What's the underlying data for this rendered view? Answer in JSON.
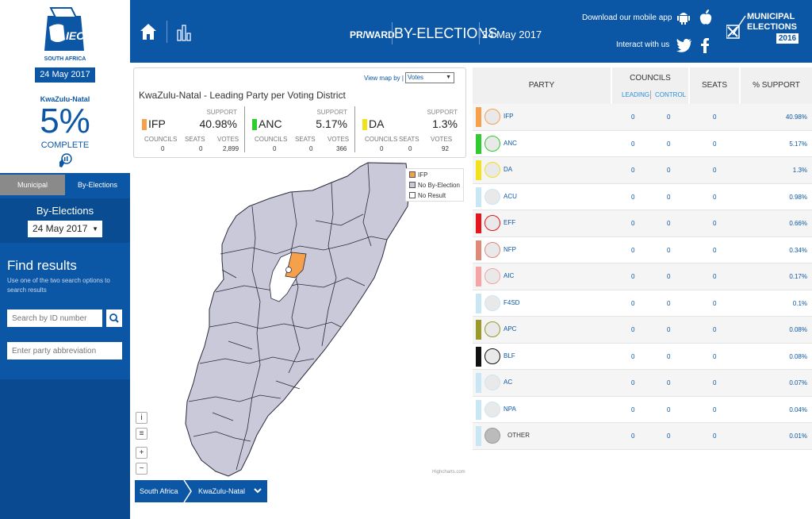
{
  "sidebar": {
    "logo_text": "IEC",
    "country": "SOUTH AFRICA",
    "date": "24 May 2017",
    "province": "KwaZulu-Natal",
    "progress_pct": "5%",
    "progress_fraction": 0.05,
    "progress_label": "COMPLETE",
    "tabs": [
      {
        "label": "Municipal",
        "active": true
      },
      {
        "label": "By-Elections",
        "active": false
      }
    ],
    "byelections_title": "By-Elections",
    "byelections_date": "24 May 2017",
    "find_title": "Find results",
    "find_desc": "Use one of the two search options to search results",
    "search_id_placeholder": "Search by ID number",
    "party_placeholder": "Enter party abbreviation"
  },
  "header": {
    "mode": "PR/WARD",
    "title": "BY-ELECTIONS",
    "date": "24 May 2017",
    "app_text": "Download our mobile app",
    "interact_text": "Interact with us",
    "brand_line1": "MUNICIPAL",
    "brand_line2": "ELECTIONS",
    "brand_year": "2016",
    "icons": [
      "home-icon",
      "chart-icon",
      "android-icon",
      "apple-icon",
      "twitter-icon",
      "facebook-icon"
    ]
  },
  "panel": {
    "view_label": "View map by |",
    "view_value": "Votes",
    "title": "KwaZulu-Natal - Leading Party per Voting District",
    "support_label": "SUPPORT",
    "councils_label": "COUNCILS",
    "seats_label": "SEATS",
    "votes_label": "VOTES",
    "parties": [
      {
        "name": "IFP",
        "support": "40.98%",
        "councils": "0",
        "seats": "0",
        "votes": "2,899",
        "color": "#f5a04b"
      },
      {
        "name": "ANC",
        "support": "5.17%",
        "councils": "0",
        "seats": "0",
        "votes": "366",
        "color": "#2ecc2e"
      },
      {
        "name": "DA",
        "support": "1.3%",
        "councils": "0",
        "seats": "0",
        "votes": "92",
        "color": "#f2e21a"
      }
    ]
  },
  "map": {
    "legend": [
      {
        "label": "IFP",
        "color": "#f5a04b"
      },
      {
        "label": "No By-Election",
        "color": "#c8c8d8"
      },
      {
        "label": "No Result",
        "color": "#ffffff"
      }
    ],
    "controls": [
      "i",
      "≡",
      "+",
      "−"
    ],
    "credit": "Highcharts.com",
    "breadcrumb": [
      "South Africa",
      "KwaZulu-Natal"
    ]
  },
  "table": {
    "headers": {
      "party": "PARTY",
      "councils": "COUNCILS",
      "leading": "LEADING",
      "control": "CONTROL",
      "seats": "SEATS",
      "support": "% SUPPORT"
    },
    "rows": [
      {
        "party": "IFP",
        "leading": "0",
        "control": "0",
        "seats": "0",
        "support": "40.98%",
        "color": "#f5a04b"
      },
      {
        "party": "ANC",
        "leading": "0",
        "control": "0",
        "seats": "0",
        "support": "5.17%",
        "color": "#2ecc2e"
      },
      {
        "party": "DA",
        "leading": "0",
        "control": "0",
        "seats": "0",
        "support": "1.3%",
        "color": "#f2e21a"
      },
      {
        "party": "ACU",
        "leading": "0",
        "control": "0",
        "seats": "0",
        "support": "0.98%",
        "color": "#c9e6f5"
      },
      {
        "party": "EFF",
        "leading": "0",
        "control": "0",
        "seats": "0",
        "support": "0.66%",
        "color": "#e8141b"
      },
      {
        "party": "NFP",
        "leading": "0",
        "control": "0",
        "seats": "0",
        "support": "0.34%",
        "color": "#e08878"
      },
      {
        "party": "AIC",
        "leading": "0",
        "control": "0",
        "seats": "0",
        "support": "0.17%",
        "color": "#f5a3a3"
      },
      {
        "party": "F4SD",
        "leading": "0",
        "control": "0",
        "seats": "0",
        "support": "0.1%",
        "color": "#c9e6f5"
      },
      {
        "party": "APC",
        "leading": "0",
        "control": "0",
        "seats": "0",
        "support": "0.08%",
        "color": "#9a9a2a"
      },
      {
        "party": "BLF",
        "leading": "0",
        "control": "0",
        "seats": "0",
        "support": "0.08%",
        "color": "#111111"
      },
      {
        "party": "AC",
        "leading": "0",
        "control": "0",
        "seats": "0",
        "support": "0.07%",
        "color": "#c9e6f5"
      },
      {
        "party": "NPA",
        "leading": "0",
        "control": "0",
        "seats": "0",
        "support": "0.04%",
        "color": "#c9e6f5"
      },
      {
        "party": "OTHER",
        "leading": "0",
        "control": "0",
        "seats": "0",
        "support": "0.01%",
        "color": "#c9e6f5"
      }
    ]
  }
}
